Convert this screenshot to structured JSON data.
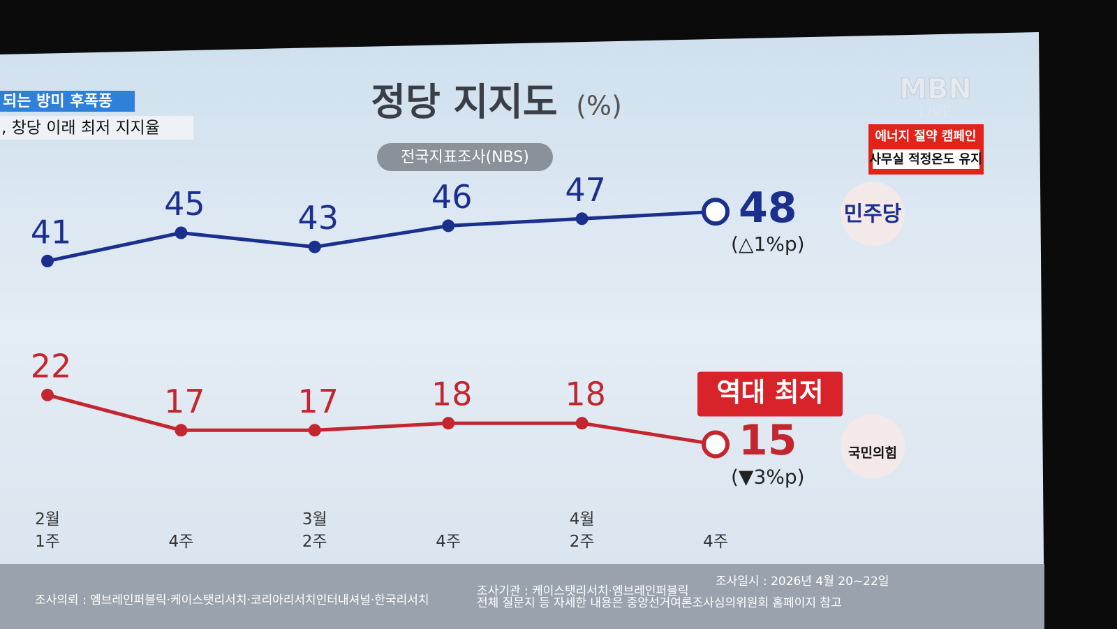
{
  "news": {
    "headline": "되는 방미 후폭풍",
    "subheadline": ", 창당 이래 최저 지지율"
  },
  "broadcaster": {
    "logo": "MBN",
    "status": "LIVE"
  },
  "campaign": {
    "title": "에너지 절약 캠페인",
    "text": "사무실 적정온도 유지"
  },
  "footer": {
    "client": "조사의뢰 : 엠브레인퍼블릭·케이스탯리서치·코리아리서치인터내셔널·한국리서치",
    "agency": "조사기관 : 케이스탯리서치·엠브레인퍼블릭",
    "date": "조사일시 : 2026년 4월 20~22일",
    "note": "전체 질문지 등 자세한 내용은 중앙선거여론조사심의위원회 홈페이지 참고"
  },
  "chart_data": {
    "type": "line",
    "title": "정당 지지도",
    "title_unit": "(%)",
    "subtitle": "전국지표조사(NBS)",
    "categories": [
      "2월\n1주",
      "4주",
      "3월\n2주",
      "4주",
      "4월\n2주",
      "4주"
    ],
    "series": [
      {
        "name": "민주당",
        "color": "#1b2f8c",
        "values": [
          41,
          45,
          43,
          46,
          47,
          48
        ],
        "change_label": "(△1%p)"
      },
      {
        "name": "국민의힘",
        "color": "#c3262f",
        "values": [
          22,
          17,
          17,
          18,
          18,
          15
        ],
        "change_label": "(▼3%p)",
        "annotation": "역대 최저"
      }
    ],
    "ylim": [
      10,
      50
    ]
  }
}
